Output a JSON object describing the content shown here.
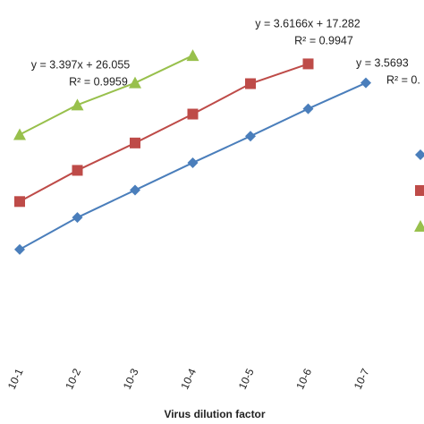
{
  "chart_data": {
    "type": "line",
    "x_label": "Virus dilution factor",
    "categories": [
      "10-1",
      "10-2",
      "10-3",
      "10-4",
      "10-5",
      "10-6",
      "10-7"
    ],
    "ylim": [
      0,
      47.4
    ],
    "series": [
      {
        "color": "#4a7ebb",
        "marker": "diamond",
        "values": [
          14.6,
          18.8,
          22.4,
          26.0,
          29.5,
          33.1,
          36.5
        ]
      },
      {
        "color": "#be4b48",
        "marker": "square",
        "values": [
          20.9,
          25.0,
          28.6,
          32.4,
          36.4,
          39.0,
          null
        ]
      },
      {
        "color": "#98c04c",
        "marker": "triangle",
        "values": [
          29.7,
          33.6,
          36.5,
          40.1,
          null,
          null,
          null
        ]
      }
    ],
    "annotations": [
      {
        "lines": [
          "y = 3.397x + 26.055",
          "R² = 0.9959"
        ]
      },
      {
        "lines": [
          "y = 3.6166x + 17.282",
          "R² = 0.9947"
        ]
      },
      {
        "lines": [
          "y = 3.5693",
          "R² = 0."
        ]
      }
    ]
  }
}
